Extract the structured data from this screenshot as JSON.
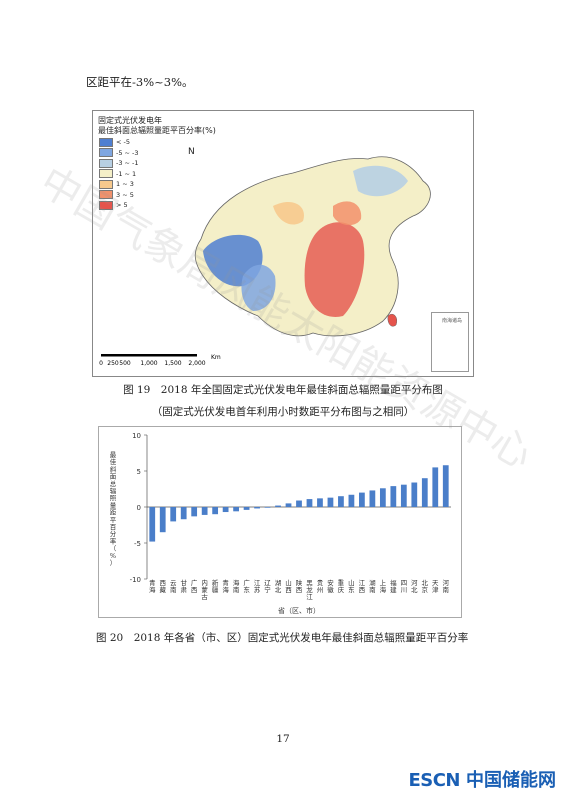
{
  "intro_text": "区距平在-3%~3%。",
  "map": {
    "title_line1": "固定式光伏发电年",
    "title_line2": "最佳斜面总辐照量距平百分率(%)",
    "legend": [
      {
        "label": "< -5",
        "color": "#4f7fd1"
      },
      {
        "label": "-5 ~ -3",
        "color": "#7fa6e0"
      },
      {
        "label": "-3 ~ -1",
        "color": "#b7cfe3"
      },
      {
        "label": "-1 ~ 1",
        "color": "#f4efc8"
      },
      {
        "label": "1 ~ 3",
        "color": "#f7c98d"
      },
      {
        "label": "3 ~ 5",
        "color": "#f2916b"
      },
      {
        "label": "> 5",
        "color": "#e5544c"
      }
    ],
    "scale_labels": [
      "0",
      "250",
      "500",
      "1,000",
      "1,500",
      "2,000"
    ],
    "scale_unit": "Km",
    "north_symbol": "N",
    "inset_label": "南海诸岛"
  },
  "caption19": "图 19　2018 年全国固定式光伏发电年最佳斜面总辐照量距平分布图",
  "caption19_sub": "（固定式光伏发电首年利用小时数距平分布图与之相同）",
  "chart_data": {
    "type": "bar",
    "ylabel": "最佳斜面总辐照量距平百分率（%）",
    "xlabel": "省（区、市）",
    "ylim": [
      -10,
      10
    ],
    "yticks": [
      -10,
      -5,
      0,
      5,
      10
    ],
    "bar_color": "#4a7ec9",
    "categories": [
      "青海",
      "西藏",
      "云南",
      "甘肃",
      "广西",
      "内蒙古",
      "新疆",
      "青海",
      "海南",
      "广东",
      "江苏",
      "辽宁",
      "湖北",
      "山西",
      "陕西",
      "黑龙江",
      "贵州",
      "安徽",
      "重庆",
      "山东",
      "江西",
      "湖南",
      "上海",
      "福建",
      "四川",
      "河北",
      "北京",
      "天津",
      "河南"
    ],
    "values": [
      -4.8,
      -3.5,
      -2.0,
      -1.7,
      -1.3,
      -1.1,
      -1.0,
      -0.7,
      -0.6,
      -0.4,
      -0.2,
      -0.1,
      0.2,
      0.5,
      0.9,
      1.1,
      1.2,
      1.3,
      1.5,
      1.7,
      2.0,
      2.3,
      2.6,
      2.9,
      3.1,
      3.4,
      4.0,
      5.5,
      5.8
    ]
  },
  "caption20": "图 20　2018 年各省（市、区）固定式光伏发电年最佳斜面总辐照量距平百分率",
  "page_number": "17",
  "footer_logo": {
    "brand": "ESCN",
    "name": "中国储能网"
  },
  "watermark_text": "中国气象局风能太阳能资源中心"
}
